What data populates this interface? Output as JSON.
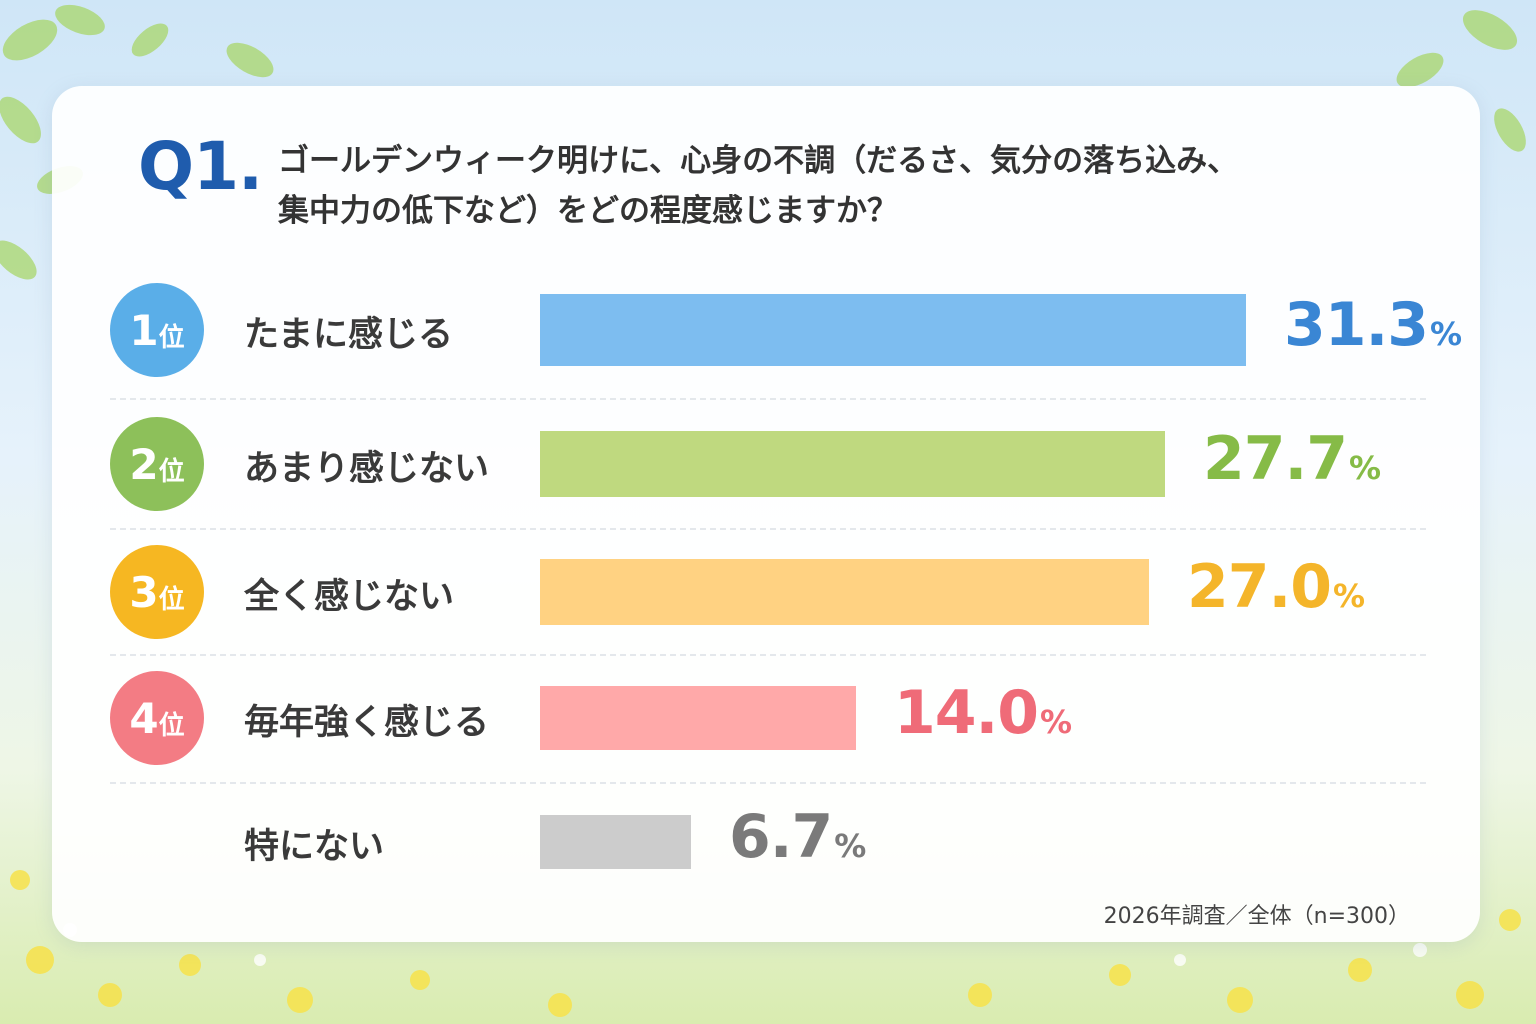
{
  "question": {
    "number": "Q1.",
    "line1": "ゴールデンウィーク明けに、心身の不調（だるさ、気分の落ち込み、",
    "line2": "集中力の低下など）をどの程度感じますか？"
  },
  "rank_unit": "位",
  "percent_sign": "%",
  "source": "2026年調査／全体（n=300）",
  "colors": {
    "blue": "#7dbdf0",
    "green": "#bfd97f",
    "orange": "#ffd282",
    "pink": "#ffa9a9",
    "gray": "#cccccc"
  },
  "chart_data": {
    "type": "bar",
    "orientation": "horizontal",
    "title": "ゴールデンウィーク明けに、心身の不調（だるさ、気分の落ち込み、集中力の低下など）をどの程度感じますか？",
    "categories": [
      "たまに感じる",
      "あまり感じない",
      "全く感じない",
      "毎年強く感じる",
      "特にない"
    ],
    "values": [
      31.3,
      27.7,
      27.0,
      14.0,
      6.7
    ],
    "value_labels": [
      "31.3",
      "27.7",
      "27.0",
      "14.0",
      "6.7"
    ],
    "ranks": [
      "1",
      "2",
      "3",
      "4",
      ""
    ],
    "bar_colors": [
      "#7dbdf0",
      "#bfd97f",
      "#ffd282",
      "#ffa9a9",
      "#cccccc"
    ],
    "badge_colors": [
      "#5aaee8",
      "#8dc05a",
      "#f6b722",
      "#f37c84",
      ""
    ],
    "value_colors": [
      "#3a86d4",
      "#86bb47",
      "#f4b52a",
      "#ef6b78",
      "#7a7a7a"
    ],
    "xlim": [
      0,
      31.3
    ],
    "grid": false,
    "legend": "none"
  }
}
